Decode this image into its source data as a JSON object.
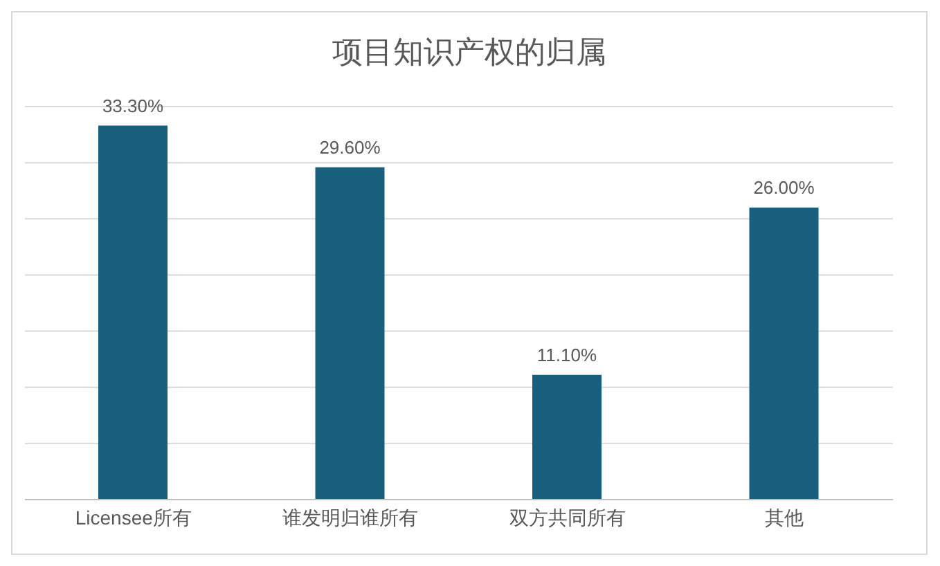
{
  "chart_data": {
    "type": "bar",
    "title": "项目知识产权的归属",
    "categories": [
      "Licensee所有",
      "谁发明归谁所有",
      "双方共同所有",
      "其他"
    ],
    "values": [
      33.3,
      29.6,
      11.1,
      26.0
    ],
    "value_labels": [
      "33.30%",
      "29.60%",
      "11.10%",
      "26.00%"
    ],
    "color": "#175f7d",
    "ylim": [
      0,
      35
    ],
    "yticks": [
      {
        "value": 0,
        "label": null
      },
      {
        "value": 5,
        "label": null
      },
      {
        "value": 10,
        "label": null
      },
      {
        "value": 15,
        "label": null
      },
      {
        "value": 20,
        "label": null
      },
      {
        "value": 25,
        "label": null
      },
      {
        "value": 30,
        "label": null
      },
      {
        "value": 35,
        "label": null
      }
    ],
    "grid": "y",
    "tick_labels": "x"
  }
}
